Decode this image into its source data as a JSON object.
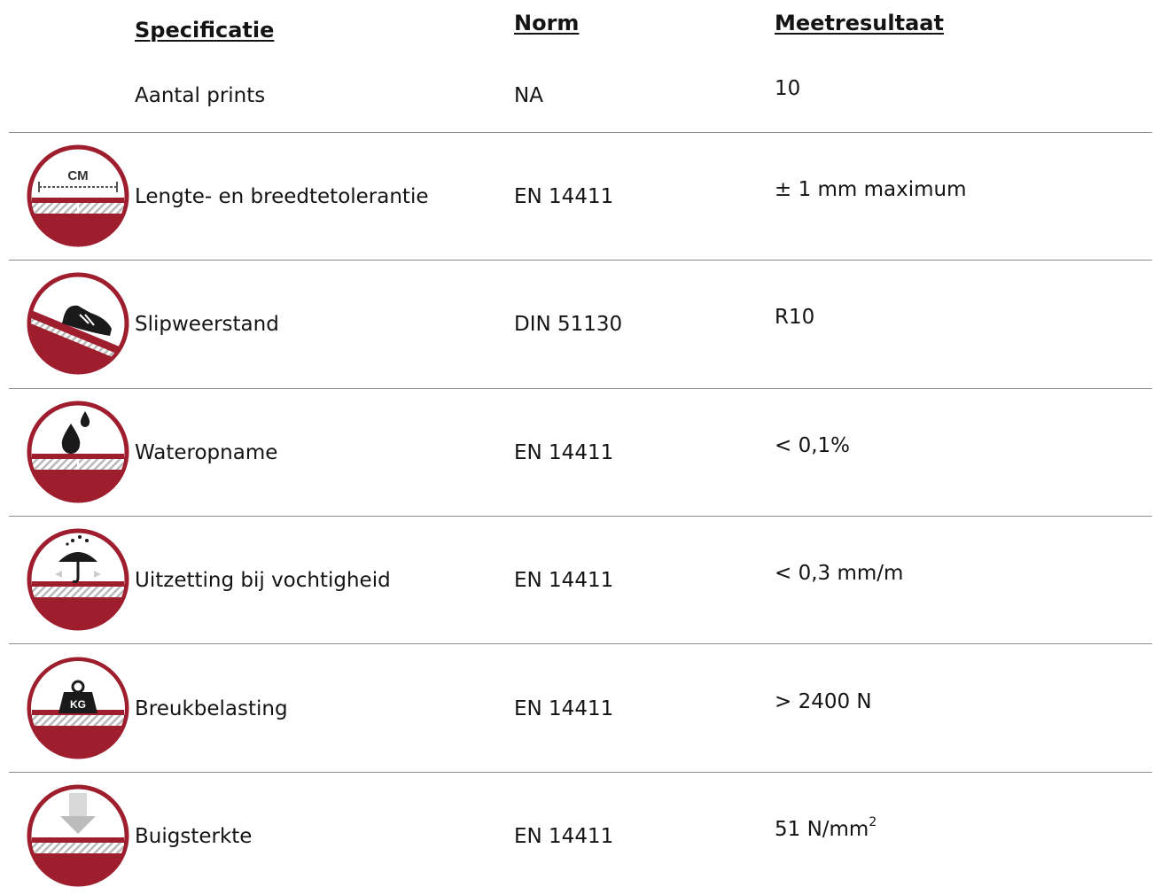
{
  "headers": {
    "specificatie": "Specificatie",
    "norm": "Norm",
    "meetresultaat": "Meetresultaat"
  },
  "colors": {
    "accent": "#9e1e2d",
    "divider": "#8d8d8d",
    "text": "#141414"
  },
  "first_row": {
    "spec": "Aantal prints",
    "norm": "NA",
    "result": "10"
  },
  "rows": [
    {
      "icon": "cm-ruler-icon",
      "icon_label": "CM",
      "spec": "Lengte- en breedtetolerantie",
      "norm": "EN 14411",
      "result": "± 1 mm maximum"
    },
    {
      "icon": "shoe-slope-icon",
      "spec": "Slipweerstand",
      "norm": "DIN 51130",
      "result": "R10"
    },
    {
      "icon": "water-drop-icon",
      "spec": "Wateropname",
      "norm": "EN 14411",
      "result": "< 0,1%"
    },
    {
      "icon": "umbrella-icon",
      "spec": "Uitzetting bij vochtigheid",
      "norm": "EN 14411",
      "result": "< 0,3 mm/m"
    },
    {
      "icon": "weight-kg-icon",
      "icon_label": "KG",
      "spec": "Breukbelasting",
      "norm": "EN 14411",
      "result": "> 2400 N"
    },
    {
      "icon": "bending-arrow-icon",
      "spec": "Buigsterkte",
      "norm": "EN 14411",
      "result": "51 N/mm",
      "result_sup": "2"
    }
  ]
}
